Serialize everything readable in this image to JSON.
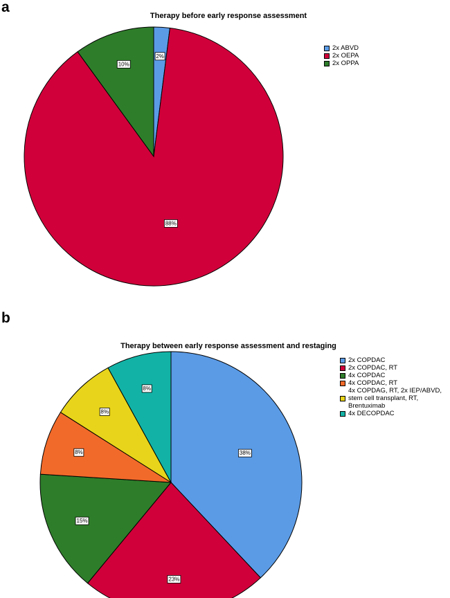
{
  "panels": {
    "a": {
      "letter": "a"
    },
    "b": {
      "letter": "b"
    }
  },
  "chart_data": [
    {
      "type": "pie",
      "title": "Therapy before early response assessment",
      "categories": [
        "2x ABVD",
        "2x OEPA",
        "2x OPPA"
      ],
      "values": [
        2,
        88,
        10
      ],
      "labels": [
        "2%",
        "88%",
        "10%"
      ],
      "colors": [
        "#5b9be6",
        "#d0003a",
        "#2e7d2a"
      ],
      "legend_position": "right"
    },
    {
      "type": "pie",
      "title": "Therapy between early response assessment and restaging",
      "categories": [
        "2x COPDAC",
        "2x COPDAC, RT",
        "4x COPDAC",
        "4x COPDAC, RT",
        "4x COPDAG, RT, 2x IEP/ABVD,\nstem cell transplant, RT,\nBrentuximab",
        "4x DECOPDAC"
      ],
      "values": [
        38,
        23,
        15,
        8,
        8,
        8
      ],
      "labels": [
        "38%",
        "23%",
        "15%",
        "8%",
        "8%",
        "8%"
      ],
      "colors": [
        "#5b9be6",
        "#d0003a",
        "#2e7d2a",
        "#f26a2a",
        "#e8d41a",
        "#12b3a6"
      ],
      "legend_position": "right"
    }
  ]
}
